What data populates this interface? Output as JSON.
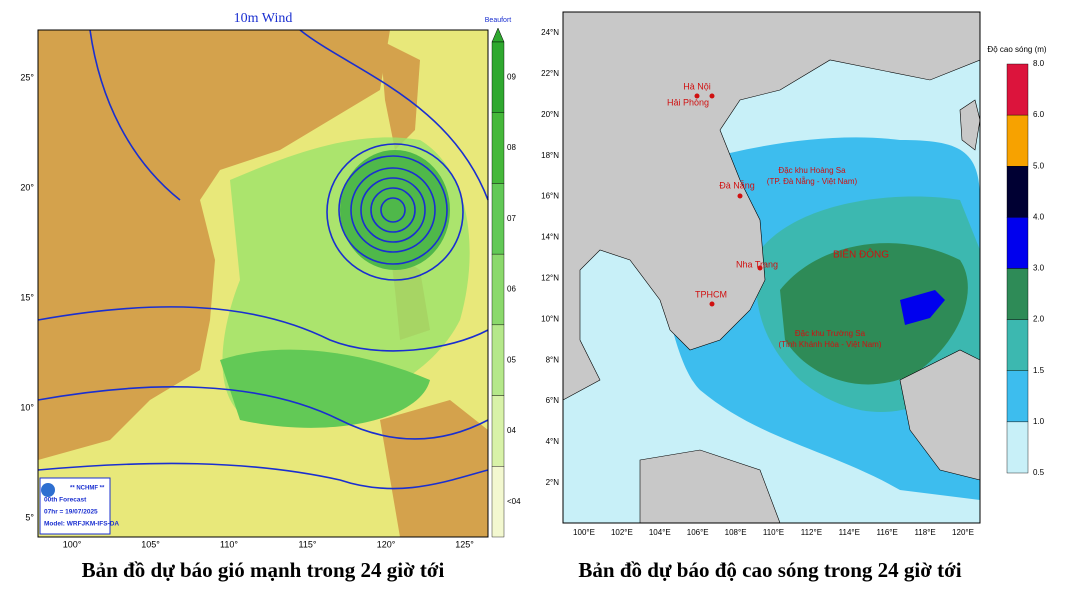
{
  "left_map": {
    "title": "10m Wind",
    "legend_title": "Beaufort",
    "legend_labels": [
      "09",
      "08",
      "07",
      "06",
      "05",
      "04",
      "<04"
    ],
    "lat_labels": [
      "25°",
      "20°",
      "15°",
      "10°",
      "5°"
    ],
    "lon_labels": [
      "100°",
      "105°",
      "110°",
      "115°",
      "120°",
      "125°"
    ],
    "info": [
      "** NCHMF **",
      "00th Forecast",
      "07hr = 19/07/2025",
      "Model: WRFJKM-IFS-DA"
    ]
  },
  "right_map": {
    "legend_title": "Độ cao sóng (m)",
    "legend_labels": [
      "8.0",
      "6.0",
      "5.0",
      "4.0",
      "3.0",
      "2.0",
      "1.5",
      "1.0",
      "0.5"
    ],
    "lat_labels": [
      "24°N",
      "22°N",
      "20°N",
      "18°N",
      "16°N",
      "14°N",
      "12°N",
      "10°N",
      "8°N",
      "6°N",
      "4°N",
      "2°N"
    ],
    "lon_labels": [
      "100°E",
      "102°E",
      "104°E",
      "106°E",
      "108°E",
      "110°E",
      "112°E",
      "114°E",
      "116°E",
      "118°E",
      "120°E"
    ],
    "places": [
      "Hà Nội",
      "Hải Phòng",
      "Đà Nẵng",
      "Nha Trang",
      "TPHCM"
    ],
    "annotations": [
      "Đặc khu Hoàng Sa",
      "(TP. Đà Nẵng - Việt Nam)",
      "BIỂN ĐÔNG",
      "Đặc khu Trường Sa",
      "(Tỉnh Khánh Hòa - Việt Nam)"
    ]
  },
  "captions": [
    "Bản đồ dự báo gió mạnh trong 24 giờ tới",
    "Bản đồ dự báo độ cao sóng trong 24 giờ tới"
  ]
}
